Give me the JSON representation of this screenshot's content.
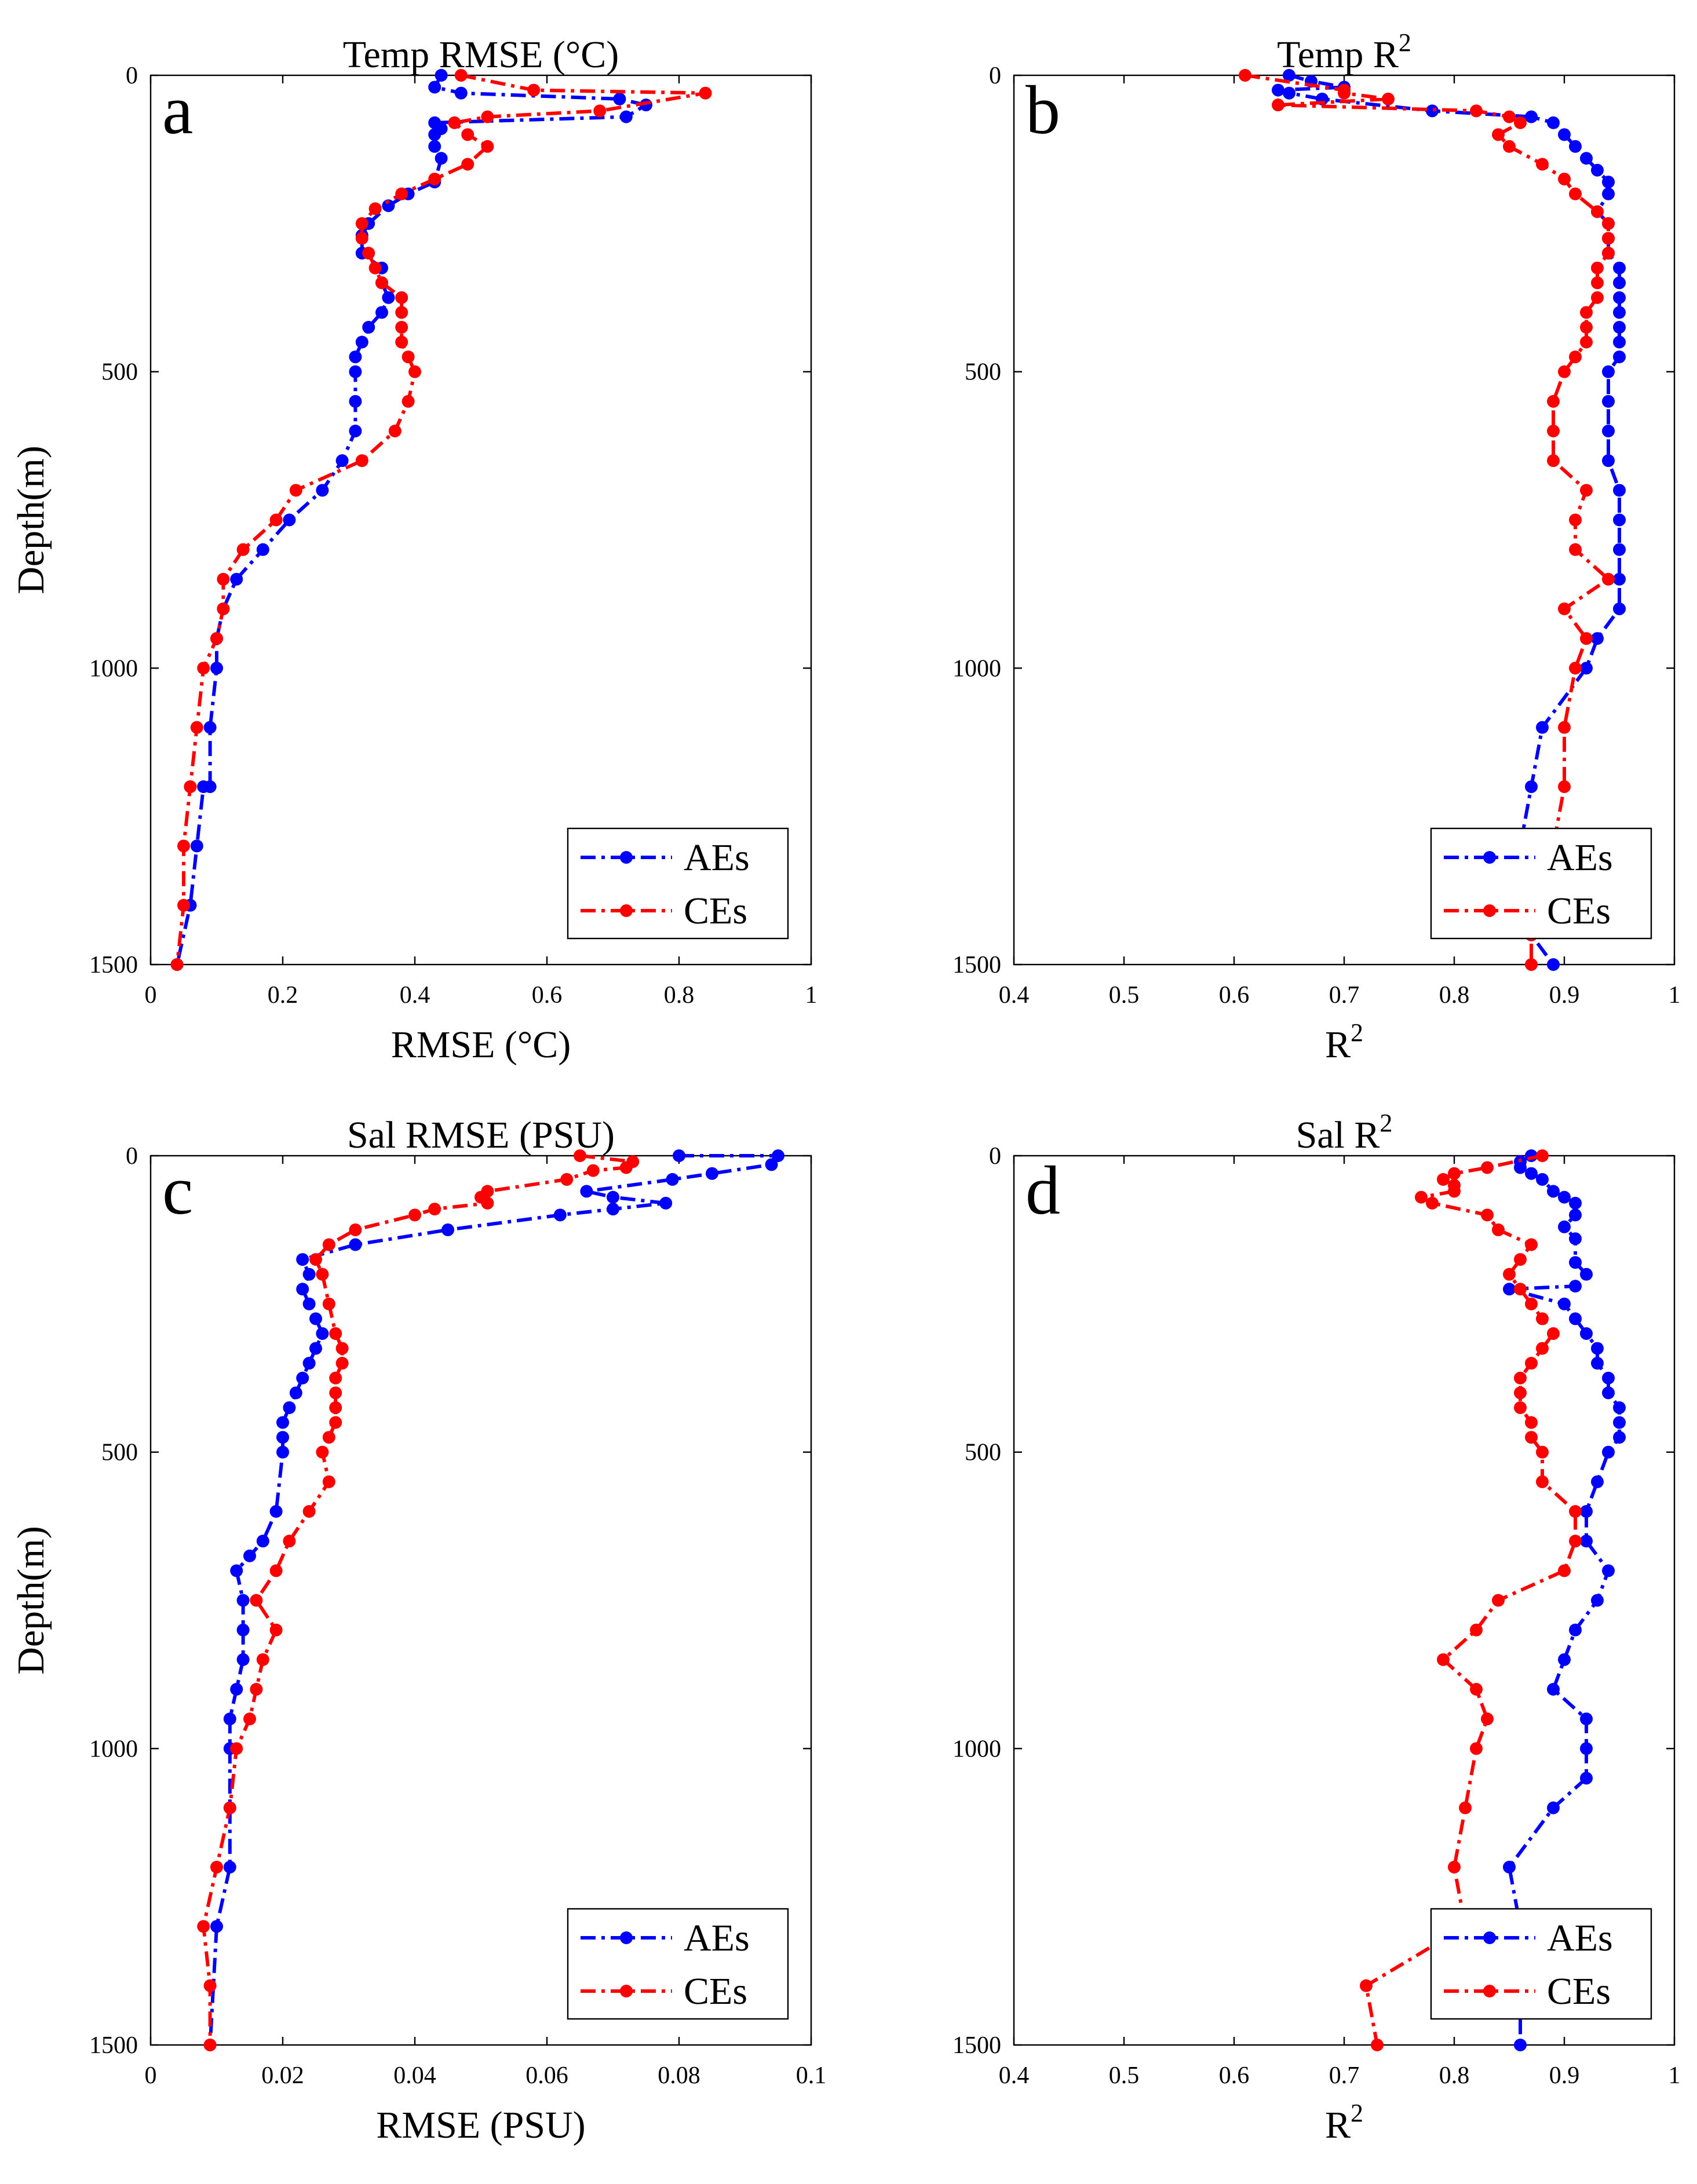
{
  "chart_data": [
    {
      "type": "line",
      "panel_letter": "a",
      "title": "Temp RMSE (°C)",
      "xlabel": "RMSE (°C)",
      "ylabel": "Depth(m)",
      "xlim": [
        0,
        1
      ],
      "ylim": [
        1500,
        0
      ],
      "x_ticks": [
        0,
        0.2,
        0.4,
        0.6,
        0.8,
        1
      ],
      "x_tick_labels": [
        "0",
        "0.2",
        "0.4",
        "0.6",
        "0.8",
        "1"
      ],
      "y_ticks": [
        0,
        500,
        1000,
        1500
      ],
      "y_tick_labels": [
        "0",
        "500",
        "1000",
        "1500"
      ],
      "legend_position": "bottom-right",
      "series": [
        {
          "name": "AEs",
          "color": "#0000ff",
          "x": [
            0.44,
            0.43,
            0.47,
            0.71,
            0.75,
            0.72,
            0.43,
            0.44,
            0.43,
            0.43,
            0.44,
            0.43,
            0.39,
            0.36,
            0.33,
            0.32,
            0.32,
            0.35,
            0.35,
            0.36,
            0.35,
            0.33,
            0.32,
            0.31,
            0.31,
            0.31,
            0.31,
            0.29,
            0.26,
            0.21,
            0.17,
            0.13,
            0.11,
            0.1,
            0.1,
            0.09,
            0.09,
            0.08,
            0.07,
            0.06,
            0.06,
            0.04
          ],
          "y": [
            0,
            20,
            30,
            40,
            50,
            70,
            80,
            90,
            100,
            120,
            140,
            180,
            200,
            220,
            250,
            270,
            300,
            325,
            350,
            375,
            400,
            425,
            450,
            475,
            500,
            550,
            600,
            650,
            700,
            750,
            800,
            850,
            900,
            950,
            1000,
            1100,
            1200,
            1200,
            1300,
            1400,
            1400,
            1500
          ]
        },
        {
          "name": "CEs",
          "color": "#ff0000",
          "x": [
            0.47,
            0.58,
            0.84,
            0.68,
            0.51,
            0.46,
            0.48,
            0.51,
            0.48,
            0.43,
            0.38,
            0.34,
            0.32,
            0.32,
            0.33,
            0.34,
            0.35,
            0.38,
            0.38,
            0.38,
            0.38,
            0.39,
            0.4,
            0.39,
            0.37,
            0.32,
            0.22,
            0.19,
            0.14,
            0.11,
            0.11,
            0.1,
            0.08,
            0.07,
            0.06,
            0.06,
            0.05,
            0.05,
            0.04
          ],
          "y": [
            0,
            25,
            30,
            60,
            70,
            80,
            100,
            120,
            150,
            175,
            200,
            225,
            250,
            275,
            300,
            325,
            350,
            375,
            400,
            425,
            450,
            475,
            500,
            550,
            600,
            650,
            700,
            750,
            800,
            850,
            900,
            950,
            1000,
            1100,
            1200,
            1200,
            1300,
            1400,
            1500
          ]
        }
      ]
    },
    {
      "type": "line",
      "panel_letter": "b",
      "title": "Temp R",
      "title_superscript": "2",
      "xlabel": "R",
      "xlabel_superscript": "2",
      "ylabel": "",
      "xlim": [
        0.4,
        1
      ],
      "ylim": [
        1500,
        0
      ],
      "x_ticks": [
        0.4,
        0.5,
        0.6,
        0.7,
        0.8,
        0.9,
        1
      ],
      "x_tick_labels": [
        "0.4",
        "0.5",
        "0.6",
        "0.7",
        "0.8",
        "0.9",
        "1"
      ],
      "y_ticks": [
        0,
        500,
        1000,
        1500
      ],
      "y_tick_labels": [
        "0",
        "500",
        "1000",
        "1500"
      ],
      "legend_position": "bottom-right",
      "series": [
        {
          "name": "AEs",
          "color": "#0000ff",
          "x": [
            0.65,
            0.67,
            0.7,
            0.64,
            0.65,
            0.68,
            0.78,
            0.87,
            0.89,
            0.9,
            0.91,
            0.92,
            0.93,
            0.94,
            0.94,
            0.93,
            0.94,
            0.94,
            0.94,
            0.95,
            0.95,
            0.95,
            0.95,
            0.95,
            0.95,
            0.95,
            0.94,
            0.94,
            0.94,
            0.94,
            0.95,
            0.95,
            0.95,
            0.95,
            0.95,
            0.93,
            0.92,
            0.88,
            0.87,
            0.86,
            0.85,
            0.87,
            0.89
          ],
          "y": [
            0,
            10,
            20,
            25,
            30,
            40,
            60,
            70,
            80,
            100,
            120,
            140,
            160,
            180,
            200,
            230,
            250,
            275,
            300,
            325,
            350,
            375,
            400,
            425,
            450,
            475,
            500,
            550,
            600,
            650,
            700,
            750,
            800,
            850,
            900,
            950,
            1000,
            1100,
            1200,
            1300,
            1400,
            1450,
            1500
          ]
        },
        {
          "name": "CEs",
          "color": "#ff0000",
          "x": [
            0.61,
            0.7,
            0.7,
            0.74,
            0.64,
            0.82,
            0.85,
            0.86,
            0.84,
            0.85,
            0.88,
            0.9,
            0.91,
            0.93,
            0.94,
            0.94,
            0.94,
            0.93,
            0.93,
            0.93,
            0.92,
            0.92,
            0.92,
            0.91,
            0.9,
            0.89,
            0.89,
            0.89,
            0.92,
            0.91,
            0.91,
            0.94,
            0.9,
            0.92,
            0.91,
            0.9,
            0.9,
            0.89,
            0.88,
            0.87,
            0.87
          ],
          "y": [
            0,
            25,
            30,
            40,
            50,
            60,
            70,
            80,
            100,
            120,
            150,
            175,
            200,
            230,
            250,
            275,
            300,
            325,
            350,
            375,
            400,
            425,
            450,
            475,
            500,
            550,
            600,
            650,
            700,
            750,
            800,
            850,
            900,
            950,
            1000,
            1100,
            1200,
            1300,
            1400,
            1450,
            1500
          ]
        }
      ]
    },
    {
      "type": "line",
      "panel_letter": "c",
      "title": "Sal RMSE (PSU)",
      "xlabel": "RMSE (PSU)",
      "ylabel": "Depth(m)",
      "xlim": [
        0,
        0.1
      ],
      "ylim": [
        1500,
        0
      ],
      "x_ticks": [
        0,
        0.02,
        0.04,
        0.06,
        0.08,
        0.1
      ],
      "x_tick_labels": [
        "0",
        "0.02",
        "0.04",
        "0.06",
        "0.08",
        "0.1"
      ],
      "y_ticks": [
        0,
        500,
        1000,
        1500
      ],
      "y_tick_labels": [
        "0",
        "500",
        "1000",
        "1500"
      ],
      "legend_position": "bottom-right",
      "series": [
        {
          "name": "AEs",
          "color": "#0000ff",
          "x": [
            0.08,
            0.095,
            0.094,
            0.085,
            0.079,
            0.066,
            0.07,
            0.078,
            0.07,
            0.062,
            0.045,
            0.031,
            0.023,
            0.024,
            0.023,
            0.024,
            0.025,
            0.026,
            0.025,
            0.024,
            0.023,
            0.022,
            0.021,
            0.02,
            0.02,
            0.02,
            0.019,
            0.017,
            0.015,
            0.013,
            0.014,
            0.014,
            0.014,
            0.013,
            0.012,
            0.012,
            0.012,
            0.012,
            0.01,
            0.009
          ],
          "y": [
            0,
            0,
            15,
            30,
            40,
            60,
            70,
            80,
            90,
            100,
            125,
            150,
            175,
            200,
            225,
            250,
            275,
            300,
            325,
            350,
            375,
            400,
            425,
            450,
            475,
            500,
            600,
            650,
            675,
            700,
            750,
            800,
            850,
            900,
            950,
            1000,
            1100,
            1200,
            1300,
            1500
          ]
        },
        {
          "name": "CEs",
          "color": "#ff0000",
          "x": [
            0.065,
            0.073,
            0.072,
            0.067,
            0.063,
            0.051,
            0.05,
            0.051,
            0.043,
            0.04,
            0.031,
            0.027,
            0.025,
            0.026,
            0.027,
            0.028,
            0.029,
            0.029,
            0.028,
            0.028,
            0.028,
            0.028,
            0.027,
            0.026,
            0.027,
            0.024,
            0.021,
            0.019,
            0.016,
            0.019,
            0.017,
            0.016,
            0.015,
            0.013,
            0.012,
            0.01,
            0.008,
            0.009,
            0.009
          ],
          "y": [
            0,
            10,
            20,
            25,
            40,
            60,
            70,
            80,
            90,
            100,
            125,
            150,
            175,
            200,
            250,
            300,
            325,
            350,
            375,
            400,
            425,
            450,
            475,
            500,
            550,
            600,
            650,
            700,
            750,
            800,
            850,
            900,
            950,
            1000,
            1100,
            1200,
            1300,
            1400,
            1500
          ]
        }
      ]
    },
    {
      "type": "line",
      "panel_letter": "d",
      "title": "Sal R",
      "title_superscript": "2",
      "xlabel": "R",
      "xlabel_superscript": "2",
      "ylabel": "",
      "xlim": [
        0.4,
        1
      ],
      "ylim": [
        1500,
        0
      ],
      "x_ticks": [
        0.4,
        0.5,
        0.6,
        0.7,
        0.8,
        0.9,
        1
      ],
      "x_tick_labels": [
        "0.4",
        "0.5",
        "0.6",
        "0.7",
        "0.8",
        "0.9",
        "1"
      ],
      "y_ticks": [
        0,
        500,
        1000,
        1500
      ],
      "y_tick_labels": [
        "0",
        "500",
        "1000",
        "1500"
      ],
      "legend_position": "bottom-right",
      "series": [
        {
          "name": "AEs",
          "color": "#0000ff",
          "x": [
            0.87,
            0.86,
            0.86,
            0.87,
            0.88,
            0.89,
            0.9,
            0.91,
            0.91,
            0.9,
            0.91,
            0.91,
            0.92,
            0.91,
            0.85,
            0.9,
            0.91,
            0.92,
            0.93,
            0.93,
            0.94,
            0.94,
            0.95,
            0.95,
            0.95,
            0.94,
            0.93,
            0.92,
            0.92,
            0.94,
            0.93,
            0.91,
            0.9,
            0.89,
            0.92,
            0.92,
            0.92,
            0.89,
            0.85,
            0.86,
            0.86
          ],
          "y": [
            0,
            10,
            20,
            30,
            40,
            60,
            70,
            80,
            100,
            120,
            140,
            180,
            200,
            220,
            225,
            250,
            275,
            300,
            325,
            350,
            375,
            400,
            425,
            450,
            475,
            500,
            550,
            600,
            650,
            700,
            750,
            800,
            850,
            900,
            950,
            1000,
            1050,
            1100,
            1200,
            1300,
            1500
          ]
        },
        {
          "name": "CEs",
          "color": "#ff0000",
          "x": [
            0.88,
            0.83,
            0.8,
            0.79,
            0.8,
            0.8,
            0.77,
            0.78,
            0.83,
            0.84,
            0.87,
            0.86,
            0.85,
            0.86,
            0.87,
            0.88,
            0.89,
            0.88,
            0.87,
            0.86,
            0.86,
            0.86,
            0.87,
            0.87,
            0.88,
            0.88,
            0.91,
            0.91,
            0.9,
            0.84,
            0.82,
            0.79,
            0.82,
            0.83,
            0.82,
            0.81,
            0.8,
            0.81,
            0.72,
            0.73
          ],
          "y": [
            0,
            20,
            30,
            40,
            50,
            60,
            70,
            80,
            100,
            125,
            150,
            175,
            200,
            225,
            250,
            275,
            300,
            325,
            350,
            375,
            400,
            425,
            450,
            475,
            500,
            550,
            600,
            650,
            700,
            750,
            800,
            850,
            900,
            950,
            1000,
            1100,
            1200,
            1300,
            1400,
            1500
          ]
        }
      ]
    }
  ]
}
